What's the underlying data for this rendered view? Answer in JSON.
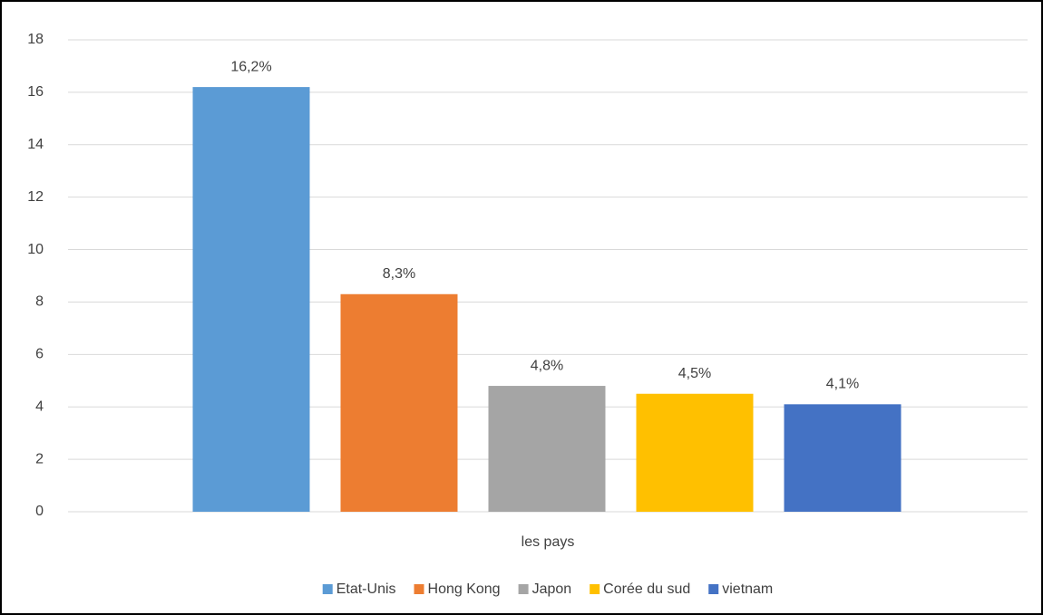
{
  "chart_data": {
    "type": "bar",
    "x_label": "les pays",
    "categories": [
      "les pays"
    ],
    "series": [
      {
        "name": "Etat-Unis",
        "color": "#5b9bd5",
        "values": [
          16.2
        ],
        "value_labels": [
          "16,2%"
        ]
      },
      {
        "name": "Hong Kong",
        "color": "#ed7d31",
        "values": [
          8.3
        ],
        "value_labels": [
          "8,3%"
        ]
      },
      {
        "name": "Japon",
        "color": "#a5a5a5",
        "values": [
          4.8
        ],
        "value_labels": [
          "4,8%"
        ]
      },
      {
        "name": "Corée du sud",
        "color": "#ffc000",
        "values": [
          4.5
        ],
        "value_labels": [
          "4,5%"
        ]
      },
      {
        "name": "vietnam",
        "color": "#4472c4",
        "values": [
          4.1
        ],
        "value_labels": [
          "4,1%"
        ]
      }
    ],
    "ylim": [
      0,
      18
    ],
    "yticks": [
      0,
      2,
      4,
      6,
      8,
      10,
      12,
      14,
      16,
      18
    ],
    "grid": true,
    "legend": "bottom"
  }
}
